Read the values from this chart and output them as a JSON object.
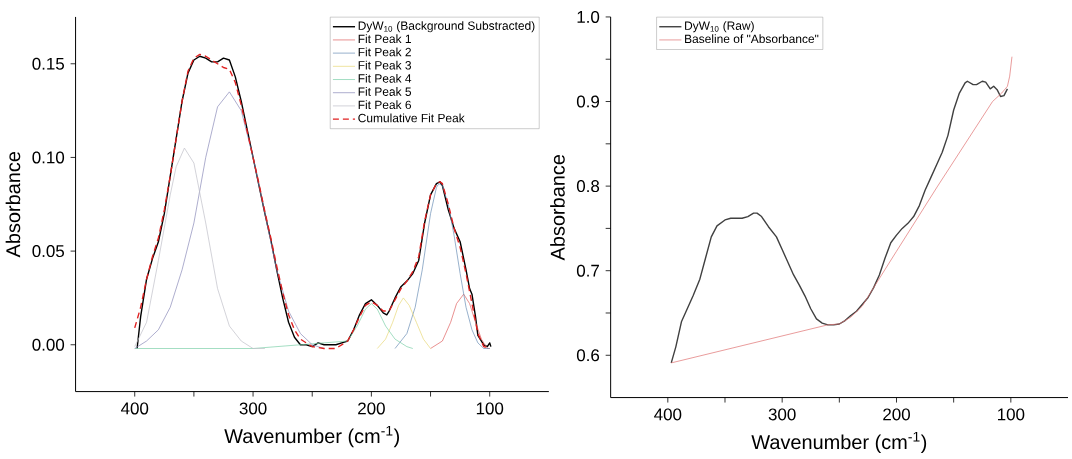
{
  "chart_data": [
    {
      "type": "line",
      "xlabel": "Wavenumber (cm$^{-1}$)",
      "ylabel": "Absorbance",
      "xlim": [
        450,
        50
      ],
      "ylim": [
        -0.025,
        0.175
      ],
      "xticks": [
        400,
        {
          "value": 350,
          "label": null
        },
        300,
        {
          "value": 250,
          "label": null
        },
        200,
        {
          "value": 150,
          "label": null
        },
        100
      ],
      "yticks": [
        {
          "value": 0,
          "label": "0.00"
        },
        {
          "value": 0.05,
          "label": "0.05"
        },
        {
          "value": 0.1,
          "label": "0.10"
        },
        {
          "value": 0.15,
          "label": "0.15"
        }
      ],
      "legend": "top right",
      "series": [
        {
          "name": "DyW$_{10}$ (Background Substracted)",
          "color": "#000000",
          "x": [
            398,
            395,
            390,
            385,
            380,
            375,
            370,
            365,
            360,
            355,
            350,
            345,
            340,
            335,
            330,
            325,
            320,
            315,
            310,
            305,
            300,
            295,
            290,
            285,
            280,
            275,
            270,
            265,
            260,
            255,
            250,
            245,
            240,
            235,
            230,
            225,
            220,
            215,
            210,
            205,
            200,
            195,
            190,
            187,
            185,
            180,
            175,
            170,
            165,
            160,
            155,
            150,
            145,
            142,
            140,
            135,
            130,
            125,
            120,
            117,
            115,
            112,
            110,
            105,
            102,
            100,
            99
          ],
          "values": [
            -0.002,
            0.015,
            0.035,
            0.046,
            0.055,
            0.07,
            0.09,
            0.11,
            0.13,
            0.145,
            0.152,
            0.154,
            0.153,
            0.151,
            0.151,
            0.153,
            0.152,
            0.143,
            0.13,
            0.115,
            0.1,
            0.085,
            0.07,
            0.056,
            0.04,
            0.025,
            0.012,
            0.004,
            0.0,
            0.0,
            -0.001,
            0.001,
            0.0,
            0.0,
            0.0,
            0.001,
            0.002,
            0.008,
            0.016,
            0.022,
            0.024,
            0.021,
            0.017,
            0.016,
            0.018,
            0.025,
            0.031,
            0.034,
            0.038,
            0.045,
            0.065,
            0.08,
            0.086,
            0.087,
            0.085,
            0.072,
            0.062,
            0.055,
            0.04,
            0.03,
            0.027,
            0.015,
            0.005,
            0.0,
            -0.001,
            0.001,
            -0.001
          ]
        },
        {
          "name": "Fit Peak 1",
          "color": "#e06060",
          "x": [
            150,
            140,
            133,
            128,
            122,
            117,
            112,
            107,
            102,
            100
          ],
          "values": [
            -0.002,
            0.002,
            0.012,
            0.022,
            0.027,
            0.022,
            0.012,
            0.003,
            -0.002,
            -0.002
          ]
        },
        {
          "name": "Fit Peak 2",
          "color": "#6a8fb5",
          "x": [
            180,
            170,
            163,
            157,
            150,
            145,
            143,
            140,
            135,
            130,
            125,
            120,
            115,
            110,
            105,
            100
          ],
          "values": [
            -0.002,
            0.006,
            0.02,
            0.04,
            0.07,
            0.084,
            0.086,
            0.085,
            0.075,
            0.058,
            0.038,
            0.02,
            0.008,
            0.001,
            -0.002,
            -0.002
          ]
        },
        {
          "name": "Fit Peak 3",
          "color": "#e8d878",
          "x": [
            195,
            188,
            182,
            177,
            173,
            168,
            162,
            156,
            150
          ],
          "values": [
            -0.002,
            0.003,
            0.012,
            0.021,
            0.025,
            0.021,
            0.012,
            0.003,
            -0.002
          ]
        },
        {
          "name": "Fit Peak 4",
          "color": "#7ccfa8",
          "x": [
            400,
            300,
            220,
            212,
            205,
            200,
            195,
            188,
            180,
            170,
            165
          ],
          "values": [
            -0.002,
            -0.002,
            0.002,
            0.01,
            0.019,
            0.022,
            0.019,
            0.01,
            0.003,
            -0.001,
            -0.002
          ]
        },
        {
          "name": "Fit Peak 5",
          "color": "#8a8ab8",
          "x": [
            400,
            390,
            380,
            370,
            360,
            350,
            340,
            330,
            320,
            310,
            300,
            290,
            280,
            270,
            260,
            250,
            240
          ],
          "values": [
            -0.002,
            0.002,
            0.008,
            0.02,
            0.04,
            0.065,
            0.1,
            0.127,
            0.135,
            0.125,
            0.1,
            0.07,
            0.04,
            0.018,
            0.006,
            0.0,
            -0.002
          ]
        },
        {
          "name": "Fit Peak 6",
          "color": "#c0c0c8",
          "x": [
            400,
            390,
            380,
            370,
            365,
            358,
            350,
            340,
            330,
            320,
            310,
            300,
            290
          ],
          "values": [
            -0.001,
            0.012,
            0.045,
            0.08,
            0.095,
            0.105,
            0.097,
            0.065,
            0.03,
            0.01,
            0.002,
            -0.002,
            -0.002
          ]
        },
        {
          "name": "Cumulative Fit Peak",
          "color": "#e02020",
          "line_style": "dashed",
          "x": [
            400,
            395,
            390,
            385,
            380,
            375,
            370,
            365,
            360,
            355,
            350,
            345,
            340,
            335,
            330,
            325,
            320,
            315,
            310,
            305,
            300,
            295,
            290,
            285,
            280,
            275,
            270,
            265,
            260,
            250,
            240,
            230,
            220,
            215,
            210,
            205,
            200,
            195,
            190,
            185,
            180,
            175,
            170,
            165,
            160,
            155,
            150,
            145,
            142,
            140,
            135,
            130,
            125,
            120,
            115,
            110,
            105,
            100
          ],
          "values": [
            0.009,
            0.02,
            0.035,
            0.047,
            0.057,
            0.072,
            0.09,
            0.11,
            0.13,
            0.146,
            0.153,
            0.155,
            0.154,
            0.152,
            0.15,
            0.148,
            0.147,
            0.14,
            0.128,
            0.114,
            0.1,
            0.086,
            0.071,
            0.057,
            0.042,
            0.028,
            0.016,
            0.008,
            0.003,
            -0.001,
            -0.002,
            -0.002,
            0.002,
            0.008,
            0.015,
            0.021,
            0.023,
            0.021,
            0.018,
            0.018,
            0.024,
            0.03,
            0.034,
            0.039,
            0.047,
            0.066,
            0.08,
            0.086,
            0.087,
            0.086,
            0.075,
            0.062,
            0.052,
            0.038,
            0.022,
            0.006,
            -0.001,
            -0.002
          ]
        }
      ]
    },
    {
      "type": "line",
      "xlabel": "Wavenumber (cm$^{-1}$)",
      "ylabel": "Absorbance",
      "xlim": [
        450,
        50
      ],
      "ylim": [
        0.55,
        1.0
      ],
      "xticks": [
        400,
        {
          "value": 350,
          "label": null
        },
        300,
        {
          "value": 250,
          "label": null
        },
        200,
        {
          "value": 150,
          "label": null
        },
        100
      ],
      "yticks": [
        0.6,
        {
          "value": 0.65,
          "label": null
        },
        0.7,
        {
          "value": 0.75,
          "label": null
        },
        0.8,
        {
          "value": 0.85,
          "label": null
        },
        0.9,
        {
          "value": 0.95,
          "label": null
        },
        {
          "value": 1.0,
          "label": "1.0"
        }
      ],
      "legend": "top left",
      "series": [
        {
          "name": "DyW$_{10}$ (Raw)",
          "color": "#404040",
          "x": [
            397,
            393,
            388,
            383,
            378,
            372,
            367,
            362,
            357,
            350,
            345,
            335,
            330,
            325,
            322,
            318,
            312,
            305,
            300,
            295,
            290,
            285,
            280,
            275,
            270,
            265,
            260,
            255,
            250,
            245,
            240,
            235,
            230,
            225,
            220,
            215,
            210,
            205,
            200,
            195,
            190,
            185,
            180,
            175,
            170,
            165,
            160,
            155,
            150,
            145,
            140,
            138,
            133,
            130,
            125,
            122,
            118,
            115,
            112,
            109,
            106,
            103
          ],
          "values": [
            0.591,
            0.61,
            0.64,
            0.655,
            0.67,
            0.69,
            0.715,
            0.74,
            0.753,
            0.76,
            0.762,
            0.762,
            0.764,
            0.768,
            0.768,
            0.764,
            0.752,
            0.74,
            0.725,
            0.71,
            0.695,
            0.683,
            0.67,
            0.655,
            0.643,
            0.638,
            0.636,
            0.636,
            0.637,
            0.641,
            0.647,
            0.652,
            0.66,
            0.668,
            0.68,
            0.695,
            0.715,
            0.733,
            0.742,
            0.75,
            0.756,
            0.764,
            0.777,
            0.795,
            0.81,
            0.825,
            0.84,
            0.86,
            0.89,
            0.91,
            0.922,
            0.924,
            0.92,
            0.92,
            0.924,
            0.923,
            0.915,
            0.918,
            0.914,
            0.906,
            0.907,
            0.915
          ]
        },
        {
          "name": "Baseline of \"Absorbance\"",
          "color": "#e07070",
          "x": [
            397,
            260,
            250,
            240,
            230,
            220,
            200,
            164,
            140,
            116,
            108,
            103,
            101,
            99
          ],
          "values": [
            0.591,
            0.636,
            0.637,
            0.645,
            0.658,
            0.68,
            0.723,
            0.8,
            0.85,
            0.9,
            0.91,
            0.918,
            0.93,
            0.953
          ]
        }
      ]
    }
  ]
}
